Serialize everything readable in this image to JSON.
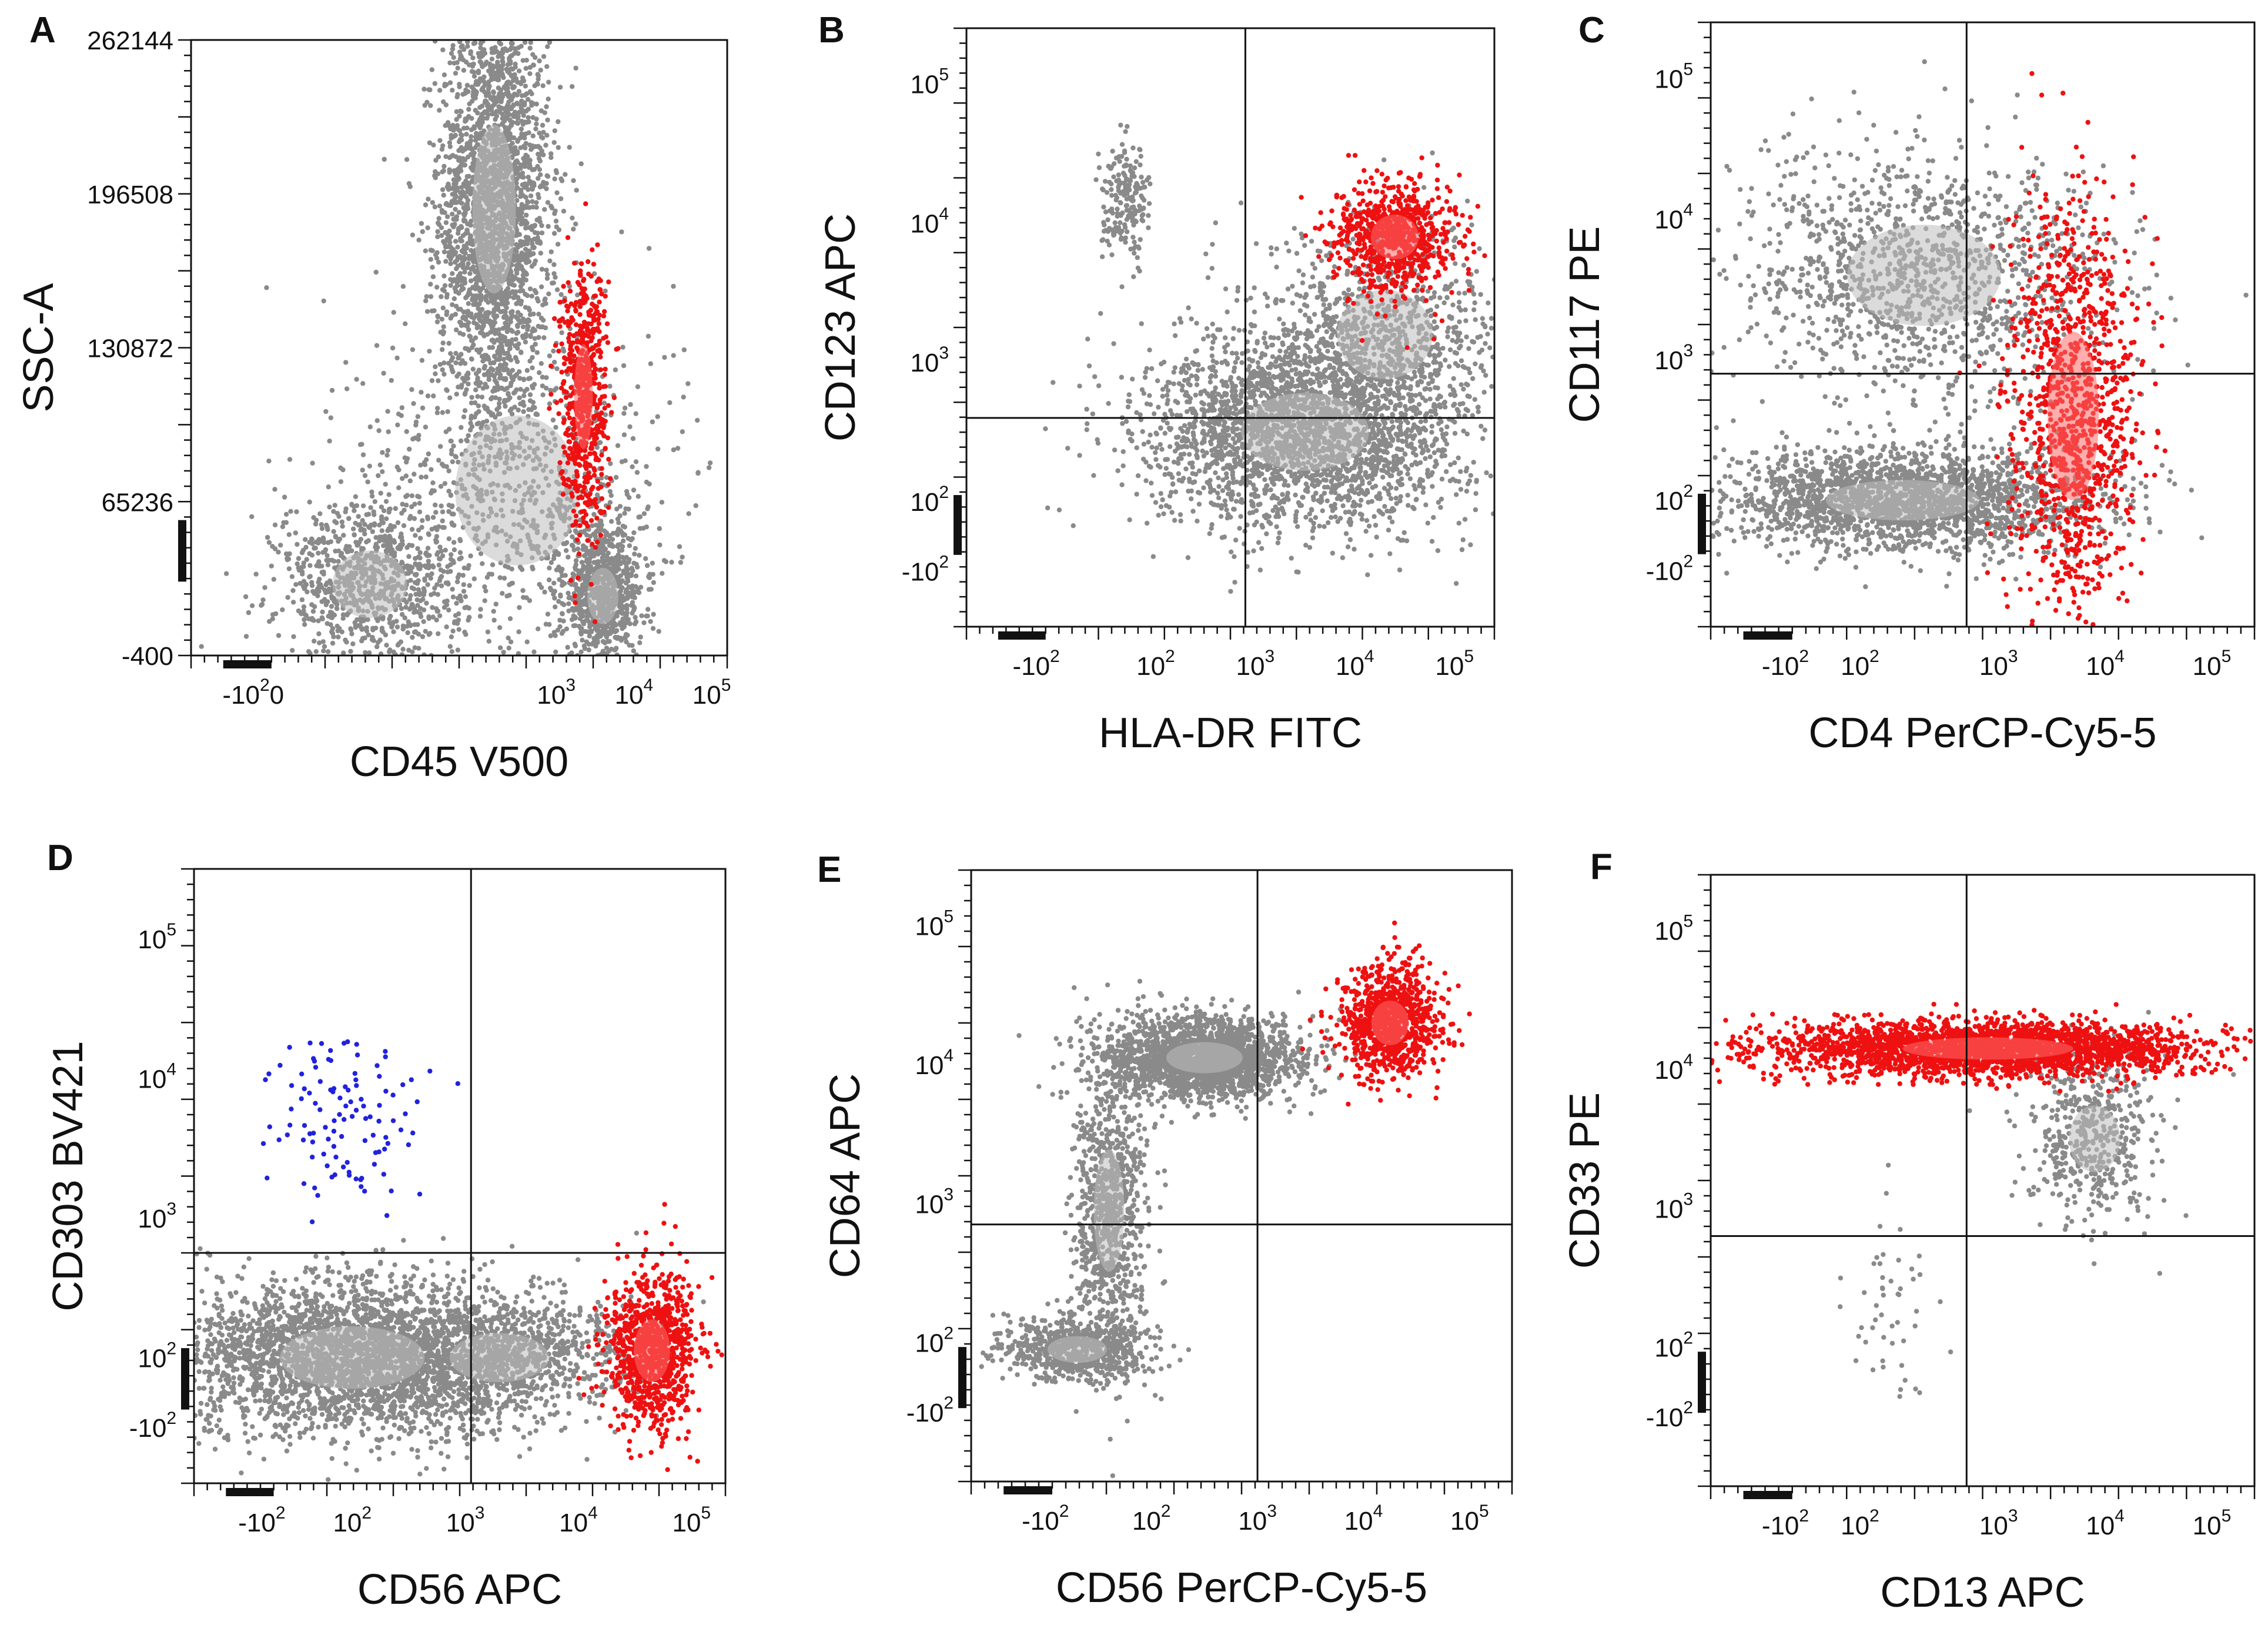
{
  "chart_data": [
    {
      "id": "A",
      "type": "scatter",
      "title": "A",
      "xlabel": "CD45 V500",
      "ylabel": "SSC-A",
      "xscale": "log",
      "yscale": "linear",
      "xticks": [
        {
          "label": "-10",
          "sup": "2",
          "extra": "0",
          "v": -0.9
        },
        {
          "label": "10",
          "sup": "3",
          "v": 3
        },
        {
          "label": "10",
          "sup": "4",
          "v": 4
        },
        {
          "label": "10",
          "sup": "5",
          "v": 5
        }
      ],
      "yticks": [
        {
          "label": "262144",
          "v": 262144
        },
        {
          "label": "196508",
          "v": 196508
        },
        {
          "label": "130872",
          "v": 130872
        },
        {
          "label": "65236",
          "v": 65236
        },
        {
          "label": "-400",
          "v": -400
        }
      ],
      "xlim": [
        -1.7,
        5.2
      ],
      "ylim": [
        -400,
        262144
      ],
      "gates": [],
      "populations": [
        {
          "name": "main",
          "color": "#8a8a8a",
          "clusters": [
            {
              "cx": 2.2,
              "cy": 190000,
              "sx": 0.35,
              "sy": 45000,
              "n": 2600
            },
            {
              "cx": 3.6,
              "cy": 25000,
              "sx": 0.25,
              "sy": 15000,
              "n": 800
            },
            {
              "cx": 0.6,
              "cy": 30000,
              "sx": 0.6,
              "sy": 18000,
              "n": 900
            },
            {
              "cx": 2.5,
              "cy": 70000,
              "sx": 1.0,
              "sy": 40000,
              "n": 900
            }
          ]
        },
        {
          "name": "highlight",
          "color": "#ee1111",
          "clusters": [
            {
              "cx": 3.35,
              "cy": 110000,
              "sx": 0.15,
              "sy": 28000,
              "n": 650
            }
          ]
        }
      ]
    },
    {
      "id": "B",
      "type": "scatter",
      "title": "B",
      "xlabel": "HLA-DR FITC",
      "ylabel": "CD123 APC",
      "xscale": "log",
      "yscale": "log",
      "xticks": [
        {
          "label": "-10",
          "sup": "2",
          "v": 0.8
        },
        {
          "label": "10",
          "sup": "2",
          "v": 2
        },
        {
          "label": "10",
          "sup": "3",
          "v": 3
        },
        {
          "label": "10",
          "sup": "4",
          "v": 4
        },
        {
          "label": "10",
          "sup": "5",
          "v": 5
        }
      ],
      "yticks": [
        {
          "label": "10",
          "sup": "5",
          "v": 5
        },
        {
          "label": "10",
          "sup": "4",
          "v": 4
        },
        {
          "label": "10",
          "sup": "3",
          "v": 3
        },
        {
          "label": "10",
          "sup": "2",
          "v": 2
        },
        {
          "label": "-10",
          "sup": "2",
          "v": 1.5
        }
      ],
      "xlim": [
        0.1,
        5.4
      ],
      "ylim": [
        1.1,
        5.4
      ],
      "gates": [
        {
          "axis": "x",
          "v": 2.9
        },
        {
          "axis": "y",
          "v": 2.6
        }
      ],
      "populations": [
        {
          "name": "main",
          "color": "#8a8a8a",
          "clusters": [
            {
              "cx": 3.5,
              "cy": 2.5,
              "sx": 0.8,
              "sy": 0.35,
              "n": 2600
            },
            {
              "cx": 1.7,
              "cy": 4.15,
              "sx": 0.12,
              "sy": 0.2,
              "n": 200
            },
            {
              "cx": 4.3,
              "cy": 3.2,
              "sx": 0.6,
              "sy": 0.4,
              "n": 900
            }
          ]
        },
        {
          "name": "highlight",
          "color": "#ee1111",
          "clusters": [
            {
              "cx": 4.4,
              "cy": 3.9,
              "sx": 0.3,
              "sy": 0.2,
              "n": 750
            }
          ]
        }
      ]
    },
    {
      "id": "C",
      "type": "scatter",
      "title": "C",
      "xlabel": "CD4 PerCP-Cy5-5",
      "ylabel": "CD117 PE",
      "xscale": "log",
      "yscale": "log",
      "xticks": [
        {
          "label": "-10",
          "sup": "2",
          "v": 1.0
        },
        {
          "label": "10",
          "sup": "2",
          "v": 1.7
        },
        {
          "label": "10",
          "sup": "3",
          "v": 3
        },
        {
          "label": "10",
          "sup": "4",
          "v": 4
        },
        {
          "label": "10",
          "sup": "5",
          "v": 5
        }
      ],
      "yticks": [
        {
          "label": "10",
          "sup": "5",
          "v": 5
        },
        {
          "label": "10",
          "sup": "4",
          "v": 4
        },
        {
          "label": "10",
          "sup": "3",
          "v": 3
        },
        {
          "label": "10",
          "sup": "2",
          "v": 2
        },
        {
          "label": "-10",
          "sup": "2",
          "v": 1.5
        }
      ],
      "xlim": [
        0.3,
        5.4
      ],
      "ylim": [
        1.1,
        5.4
      ],
      "gates": [
        {
          "axis": "x",
          "v": 2.7
        },
        {
          "axis": "y",
          "v": 2.9
        }
      ],
      "populations": [
        {
          "name": "main",
          "color": "#8a8a8a",
          "clusters": [
            {
              "cx": 2.1,
              "cy": 2.0,
              "sx": 0.9,
              "sy": 0.18,
              "n": 2200
            },
            {
              "cx": 2.3,
              "cy": 3.6,
              "sx": 0.9,
              "sy": 0.45,
              "n": 1300
            }
          ]
        },
        {
          "name": "highlight",
          "color": "#ee1111",
          "clusters": [
            {
              "cx": 3.7,
              "cy": 2.6,
              "sx": 0.3,
              "sy": 0.75,
              "n": 1100
            }
          ]
        }
      ]
    },
    {
      "id": "D",
      "type": "scatter",
      "title": "D",
      "xlabel": "CD56 APC",
      "ylabel": "CD303 BV421",
      "xscale": "log",
      "yscale": "log",
      "xticks": [
        {
          "label": "-10",
          "sup": "2",
          "v": 1.2
        },
        {
          "label": "10",
          "sup": "2",
          "v": 2
        },
        {
          "label": "10",
          "sup": "3",
          "v": 3
        },
        {
          "label": "10",
          "sup": "4",
          "v": 4
        },
        {
          "label": "10",
          "sup": "5",
          "v": 5
        }
      ],
      "yticks": [
        {
          "label": "10",
          "sup": "5",
          "v": 5
        },
        {
          "label": "10",
          "sup": "4",
          "v": 4
        },
        {
          "label": "10",
          "sup": "3",
          "v": 3
        },
        {
          "label": "10",
          "sup": "2",
          "v": 2
        },
        {
          "label": "-10",
          "sup": "2",
          "v": 1.5
        }
      ],
      "xlim": [
        0.6,
        5.3
      ],
      "ylim": [
        1.1,
        5.5
      ],
      "gates": [
        {
          "axis": "x",
          "v": 3.05
        },
        {
          "axis": "y",
          "v": 2.75
        }
      ],
      "populations": [
        {
          "name": "main",
          "color": "#8a8a8a",
          "clusters": [
            {
              "cx": 2.0,
              "cy": 2.0,
              "sx": 0.8,
              "sy": 0.28,
              "n": 3000
            },
            {
              "cx": 3.3,
              "cy": 2.0,
              "sx": 0.55,
              "sy": 0.22,
              "n": 900
            }
          ]
        },
        {
          "name": "highlight",
          "color": "#ee1111",
          "clusters": [
            {
              "cx": 4.65,
              "cy": 2.05,
              "sx": 0.2,
              "sy": 0.28,
              "n": 900
            }
          ]
        },
        {
          "name": "pdc",
          "color": "#2222dd",
          "clusters": [
            {
              "cx": 1.9,
              "cy": 3.7,
              "sx": 0.28,
              "sy": 0.3,
              "n": 110
            }
          ]
        }
      ]
    },
    {
      "id": "E",
      "type": "scatter",
      "title": "E",
      "xlabel": "CD56 PerCP-Cy5-5",
      "ylabel": "CD64 APC",
      "xscale": "log",
      "yscale": "log",
      "xticks": [
        {
          "label": "-10",
          "sup": "2",
          "v": 1.0
        },
        {
          "label": "10",
          "sup": "2",
          "v": 2
        },
        {
          "label": "10",
          "sup": "3",
          "v": 3
        },
        {
          "label": "10",
          "sup": "4",
          "v": 4
        },
        {
          "label": "10",
          "sup": "5",
          "v": 5
        }
      ],
      "yticks": [
        {
          "label": "10",
          "sup": "5",
          "v": 5
        },
        {
          "label": "10",
          "sup": "4",
          "v": 4
        },
        {
          "label": "10",
          "sup": "3",
          "v": 3
        },
        {
          "label": "10",
          "sup": "2",
          "v": 2
        },
        {
          "label": "-10",
          "sup": "2",
          "v": 1.5
        }
      ],
      "xlim": [
        0.3,
        5.4
      ],
      "ylim": [
        1.0,
        5.4
      ],
      "gates": [
        {
          "axis": "x",
          "v": 3.0
        },
        {
          "axis": "y",
          "v": 2.85
        }
      ],
      "populations": [
        {
          "name": "main",
          "color": "#8a8a8a",
          "clusters": [
            {
              "cx": 2.5,
              "cy": 4.05,
              "sx": 0.45,
              "sy": 0.14,
              "n": 2200
            },
            {
              "cx": 1.6,
              "cy": 2.95,
              "sx": 0.18,
              "sy": 0.55,
              "n": 900
            },
            {
              "cx": 1.3,
              "cy": 1.95,
              "sx": 0.35,
              "sy": 0.12,
              "n": 700
            }
          ]
        },
        {
          "name": "highlight",
          "color": "#ee1111",
          "clusters": [
            {
              "cx": 4.25,
              "cy": 4.3,
              "sx": 0.22,
              "sy": 0.2,
              "n": 900
            }
          ]
        }
      ]
    },
    {
      "id": "F",
      "type": "scatter",
      "title": "F",
      "xlabel": "CD13 APC",
      "ylabel": "CD33 PE",
      "xscale": "log",
      "yscale": "log",
      "xticks": [
        {
          "label": "-10",
          "sup": "2",
          "v": 1.0
        },
        {
          "label": "10",
          "sup": "2",
          "v": 1.7
        },
        {
          "label": "10",
          "sup": "3",
          "v": 3
        },
        {
          "label": "10",
          "sup": "4",
          "v": 4
        },
        {
          "label": "10",
          "sup": "5",
          "v": 5
        }
      ],
      "yticks": [
        {
          "label": "10",
          "sup": "5",
          "v": 5
        },
        {
          "label": "10",
          "sup": "4",
          "v": 4
        },
        {
          "label": "10",
          "sup": "3",
          "v": 3
        },
        {
          "label": "10",
          "sup": "2",
          "v": 2
        },
        {
          "label": "-10",
          "sup": "2",
          "v": 1.5
        }
      ],
      "xlim": [
        0.3,
        5.4
      ],
      "ylim": [
        1.0,
        5.4
      ],
      "gates": [
        {
          "axis": "x",
          "v": 2.7
        },
        {
          "axis": "y",
          "v": 2.8
        }
      ],
      "populations": [
        {
          "name": "main",
          "color": "#8a8a8a",
          "clusters": [
            {
              "cx": 3.9,
              "cy": 3.5,
              "sx": 0.3,
              "sy": 0.3,
              "n": 500
            },
            {
              "cx": 2.0,
              "cy": 2.3,
              "sx": 0.2,
              "sy": 0.4,
              "n": 50
            }
          ]
        },
        {
          "name": "highlight",
          "color": "#ee1111",
          "clusters": [
            {
              "cx": 2.9,
              "cy": 4.15,
              "sx": 1.0,
              "sy": 0.1,
              "n": 2600
            }
          ]
        }
      ]
    }
  ]
}
